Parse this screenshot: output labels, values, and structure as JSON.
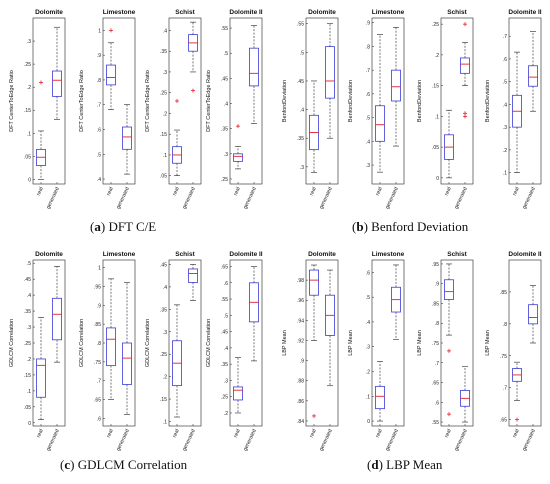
{
  "panels": [
    {
      "letter": "a",
      "caption": "DFT C/E"
    },
    {
      "letter": "b",
      "caption": "Benford Deviation"
    },
    {
      "letter": "c",
      "caption": "GDLCM Correlation"
    },
    {
      "letter": "d",
      "caption": "LBP Mean"
    }
  ],
  "colors": {
    "box": "#3b3bd6",
    "median": "#e0202e",
    "outlier": "#e0202e",
    "whisker": "#222222"
  },
  "chart_data": [
    {
      "type": "box",
      "panel": "a",
      "categories": [
        "real",
        "generated"
      ],
      "subplots": [
        {
          "title": "Dolomite",
          "ylabel": "DFT CenterToEdge Ratio",
          "ylim": [
            -0.01,
            0.35
          ],
          "ticks": [
            0,
            0.05,
            0.1,
            0.15,
            0.2,
            0.25,
            0.3
          ],
          "boxes": [
            {
              "min": 0.0,
              "q1": 0.03,
              "median": 0.048,
              "q3": 0.065,
              "max": 0.105,
              "outliers": [
                0.21
              ]
            },
            {
              "min": 0.13,
              "q1": 0.18,
              "median": 0.215,
              "q3": 0.235,
              "max": 0.33,
              "outliers": []
            }
          ]
        },
        {
          "title": "Limestone",
          "ylabel": "DFT CenterToEdge Ratio",
          "ylim": [
            0.38,
            1.05
          ],
          "ticks": [
            0.4,
            0.5,
            0.6,
            0.7,
            0.8,
            0.9,
            1
          ],
          "boxes": [
            {
              "min": 0.68,
              "q1": 0.78,
              "median": 0.81,
              "q3": 0.86,
              "max": 0.95,
              "outliers": [
                1.0
              ]
            },
            {
              "min": 0.42,
              "q1": 0.52,
              "median": 0.57,
              "q3": 0.61,
              "max": 0.7,
              "outliers": []
            }
          ]
        },
        {
          "title": "Schist",
          "ylabel": "DFT CenterToEdge Ratio",
          "ylim": [
            0.03,
            0.43
          ],
          "ticks": [
            0.05,
            0.1,
            0.15,
            0.2,
            0.25,
            0.3,
            0.35,
            0.4
          ],
          "boxes": [
            {
              "min": 0.05,
              "q1": 0.08,
              "median": 0.1,
              "q3": 0.12,
              "max": 0.16,
              "outliers": [
                0.23
              ]
            },
            {
              "min": 0.3,
              "q1": 0.35,
              "median": 0.37,
              "q3": 0.39,
              "max": 0.42,
              "outliers": [
                0.255
              ]
            }
          ]
        },
        {
          "title": "Dolomite II",
          "ylabel": "DFT CenterToEdge Ratio",
          "ylim": [
            0.24,
            0.57
          ],
          "ticks": [
            0.25,
            0.3,
            0.35,
            0.4,
            0.45,
            0.5,
            0.55
          ],
          "boxes": [
            {
              "min": 0.27,
              "q1": 0.285,
              "median": 0.295,
              "q3": 0.3,
              "max": 0.315,
              "outliers": [
                0.355
              ]
            },
            {
              "min": 0.36,
              "q1": 0.435,
              "median": 0.46,
              "q3": 0.51,
              "max": 0.555,
              "outliers": []
            }
          ]
        }
      ]
    },
    {
      "type": "box",
      "panel": "b",
      "categories": [
        "real",
        "generated"
      ],
      "subplots": [
        {
          "title": "Dolomite",
          "ylabel": "BenfordDeviation",
          "ylim": [
            0.27,
            0.56
          ],
          "ticks": [
            0.3,
            0.35,
            0.4,
            0.45,
            0.5,
            0.55
          ],
          "boxes": [
            {
              "min": 0.29,
              "q1": 0.33,
              "median": 0.36,
              "q3": 0.39,
              "max": 0.45,
              "outliers": []
            },
            {
              "min": 0.35,
              "q1": 0.42,
              "median": 0.45,
              "q3": 0.51,
              "max": 0.55,
              "outliers": []
            }
          ]
        },
        {
          "title": "Limestone",
          "ylabel": "BenfordDeviation",
          "ylim": [
            0.22,
            0.92
          ],
          "ticks": [
            0.3,
            0.4,
            0.5,
            0.6,
            0.7,
            0.8,
            0.9
          ],
          "boxes": [
            {
              "min": 0.27,
              "q1": 0.4,
              "median": 0.47,
              "q3": 0.55,
              "max": 0.85,
              "outliers": []
            },
            {
              "min": 0.38,
              "q1": 0.57,
              "median": 0.63,
              "q3": 0.7,
              "max": 0.88,
              "outliers": []
            }
          ]
        },
        {
          "title": "Schist",
          "ylabel": "BenfordDeviation",
          "ylim": [
            -0.01,
            0.26
          ],
          "ticks": [
            0,
            0.05,
            0.1,
            0.15,
            0.2,
            0.25
          ],
          "boxes": [
            {
              "min": 0.0,
              "q1": 0.03,
              "median": 0.05,
              "q3": 0.07,
              "max": 0.11,
              "outliers": []
            },
            {
              "min": 0.15,
              "q1": 0.17,
              "median": 0.185,
              "q3": 0.195,
              "max": 0.22,
              "outliers": [
                0.1,
                0.105,
                0.25
              ]
            }
          ]
        },
        {
          "title": "Dolomite II",
          "ylabel": "BenfordDeviation",
          "ylim": [
            0.05,
            0.78
          ],
          "ticks": [
            0.1,
            0.2,
            0.3,
            0.4,
            0.5,
            0.6,
            0.7
          ],
          "boxes": [
            {
              "min": 0.1,
              "q1": 0.3,
              "median": 0.37,
              "q3": 0.44,
              "max": 0.63,
              "outliers": []
            },
            {
              "min": 0.37,
              "q1": 0.48,
              "median": 0.52,
              "q3": 0.57,
              "max": 0.72,
              "outliers": []
            }
          ]
        }
      ]
    },
    {
      "type": "box",
      "panel": "c",
      "categories": [
        "real",
        "generated"
      ],
      "subplots": [
        {
          "title": "Dolomite",
          "ylabel": "GDLCM Correlation",
          "ylim": [
            -0.01,
            0.51
          ],
          "ticks": [
            0,
            0.05,
            0.1,
            0.15,
            0.2,
            0.25,
            0.3,
            0.35,
            0.4,
            0.45,
            0.5
          ],
          "boxes": [
            {
              "min": 0.01,
              "q1": 0.08,
              "median": 0.18,
              "q3": 0.2,
              "max": 0.33,
              "outliers": []
            },
            {
              "min": 0.19,
              "q1": 0.26,
              "median": 0.34,
              "q3": 0.39,
              "max": 0.49,
              "outliers": []
            }
          ]
        },
        {
          "title": "Limestone",
          "ylabel": "GDLCM Correlation",
          "ylim": [
            0.58,
            1.02
          ],
          "ticks": [
            0.6,
            0.65,
            0.7,
            0.75,
            0.8,
            0.85,
            0.9,
            0.95,
            1
          ],
          "boxes": [
            {
              "min": 0.65,
              "q1": 0.74,
              "median": 0.81,
              "q3": 0.84,
              "max": 0.97,
              "outliers": []
            },
            {
              "min": 0.61,
              "q1": 0.69,
              "median": 0.76,
              "q3": 0.8,
              "max": 0.96,
              "outliers": []
            }
          ]
        },
        {
          "title": "Schist",
          "ylabel": "GDLCM Correlation",
          "ylim": [
            0.09,
            0.46
          ],
          "ticks": [
            0.1,
            0.15,
            0.2,
            0.25,
            0.3,
            0.35,
            0.4,
            0.45
          ],
          "boxes": [
            {
              "min": 0.11,
              "q1": 0.18,
              "median": 0.23,
              "q3": 0.28,
              "max": 0.36,
              "outliers": []
            },
            {
              "min": 0.37,
              "q1": 0.41,
              "median": 0.43,
              "q3": 0.44,
              "max": 0.45,
              "outliers": []
            }
          ]
        },
        {
          "title": "Dolomite II",
          "ylabel": "GDLCM Correlation",
          "ylim": [
            0.16,
            0.67
          ],
          "ticks": [
            0.2,
            0.25,
            0.3,
            0.35,
            0.4,
            0.45,
            0.5,
            0.55,
            0.6,
            0.65
          ],
          "boxes": [
            {
              "min": 0.2,
              "q1": 0.24,
              "median": 0.27,
              "q3": 0.28,
              "max": 0.37,
              "outliers": []
            },
            {
              "min": 0.36,
              "q1": 0.48,
              "median": 0.54,
              "q3": 0.6,
              "max": 0.65,
              "outliers": []
            }
          ]
        }
      ]
    },
    {
      "type": "box",
      "panel": "d",
      "categories": [
        "real",
        "generated"
      ],
      "subplots": [
        {
          "title": "Dolomite",
          "ylabel": "LBP Mean",
          "ylim": [
            0.835,
            1.0
          ],
          "ticks": [
            0.84,
            0.86,
            0.88,
            0.9,
            0.92,
            0.94,
            0.96,
            0.98
          ],
          "boxes": [
            {
              "min": 0.92,
              "q1": 0.965,
              "median": 0.98,
              "q3": 0.99,
              "max": 0.995,
              "outliers": [
                0.845
              ]
            },
            {
              "min": 0.875,
              "q1": 0.925,
              "median": 0.945,
              "q3": 0.965,
              "max": 0.99,
              "outliers": []
            }
          ]
        },
        {
          "title": "Limestone",
          "ylabel": "LBP Mean",
          "ylim": [
            -0.02,
            0.65
          ],
          "ticks": [
            0,
            0.1,
            0.2,
            0.3,
            0.4,
            0.5,
            0.6
          ],
          "boxes": [
            {
              "min": 0.0,
              "q1": 0.05,
              "median": 0.1,
              "q3": 0.14,
              "max": 0.24,
              "outliers": []
            },
            {
              "min": 0.33,
              "q1": 0.44,
              "median": 0.49,
              "q3": 0.54,
              "max": 0.63,
              "outliers": []
            }
          ]
        },
        {
          "title": "Schist",
          "ylabel": "LBP Mean",
          "ylim": [
            0.54,
            0.96
          ],
          "ticks": [
            0.55,
            0.6,
            0.65,
            0.7,
            0.75,
            0.8,
            0.85,
            0.9,
            0.95
          ],
          "boxes": [
            {
              "min": 0.77,
              "q1": 0.86,
              "median": 0.88,
              "q3": 0.91,
              "max": 0.95,
              "outliers": [
                0.73,
                0.57
              ]
            },
            {
              "min": 0.55,
              "q1": 0.59,
              "median": 0.61,
              "q3": 0.63,
              "max": 0.69,
              "outliers": []
            }
          ]
        },
        {
          "title": "Dolomite II",
          "ylabel": "LBP Mean",
          "ylim": [
            0.64,
            0.9
          ],
          "ticks": [
            0.65,
            0.7,
            0.75,
            0.8,
            0.85
          ],
          "boxes": [
            {
              "min": 0.68,
              "q1": 0.71,
              "median": 0.72,
              "q3": 0.73,
              "max": 0.74,
              "outliers": [
                0.65
              ]
            },
            {
              "min": 0.77,
              "q1": 0.8,
              "median": 0.81,
              "q3": 0.83,
              "max": 0.86,
              "outliers": []
            }
          ]
        }
      ]
    }
  ]
}
